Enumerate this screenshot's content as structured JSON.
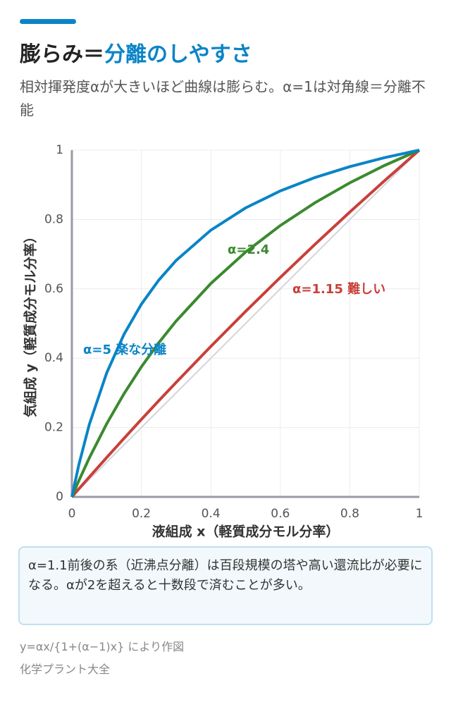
{
  "header": {
    "title": "膨らみ＝",
    "title_highlight": "分離のしやすさ",
    "subtitle": "相対揮発度αが大きいほど曲線は膨らむ。α=1は対角線＝分離不能"
  },
  "chart_data": {
    "type": "line",
    "x_label": "液組成 x（軽質成分モル分率）",
    "y_label": "気組成 y（軽質成分モル分率）",
    "x": [
      0,
      0.02,
      0.05,
      0.1,
      0.15,
      0.2,
      0.25,
      0.3,
      0.4,
      0.5,
      0.6,
      0.7,
      0.8,
      0.9,
      1
    ],
    "series": [
      {
        "color": "#d4d4dc",
        "values": [
          0,
          0.02,
          0.05,
          0.1,
          0.15,
          0.2,
          0.25,
          0.3,
          0.4,
          0.5,
          0.6,
          0.7,
          0.8,
          0.9,
          1
        ]
      },
      {
        "name": "α=1.15 難しい",
        "color": "#c8403a",
        "values": [
          0,
          0.0229,
          0.0571,
          0.1133,
          0.1687,
          0.2233,
          0.2771,
          0.3301,
          0.434,
          0.5349,
          0.633,
          0.7285,
          0.8214,
          0.9119,
          1
        ]
      },
      {
        "name": "α=2.4",
        "color": "#3a8a2e",
        "values": [
          0,
          0.0467,
          0.1121,
          0.2105,
          0.2975,
          0.375,
          0.4444,
          0.507,
          0.6154,
          0.7059,
          0.7826,
          0.8485,
          0.9057,
          0.9558,
          1
        ]
      },
      {
        "name": "α=5 楽な分離",
        "color": "#0a84c6",
        "values": [
          0,
          0.0926,
          0.2083,
          0.3571,
          0.4688,
          0.5556,
          0.625,
          0.6818,
          0.7692,
          0.8333,
          0.8824,
          0.9211,
          0.9524,
          0.9783,
          1
        ]
      }
    ],
    "xlim": [
      0,
      1
    ],
    "ylim": [
      0,
      1
    ],
    "xticks": [
      0,
      0.2,
      0.4,
      0.6,
      0.8,
      1
    ],
    "yticks": [
      0,
      0.2,
      0.4,
      0.6,
      0.8,
      1
    ],
    "grid": true
  },
  "note": "α=1.1前後の系（近沸点分離）は百段規模の塔や高い還流比が必要になる。αが2を超えると十数段で済むことが多い。",
  "footer": {
    "source": "y=αx/{1+(α−1)x} により作図",
    "credit": "化学プラント大全"
  }
}
